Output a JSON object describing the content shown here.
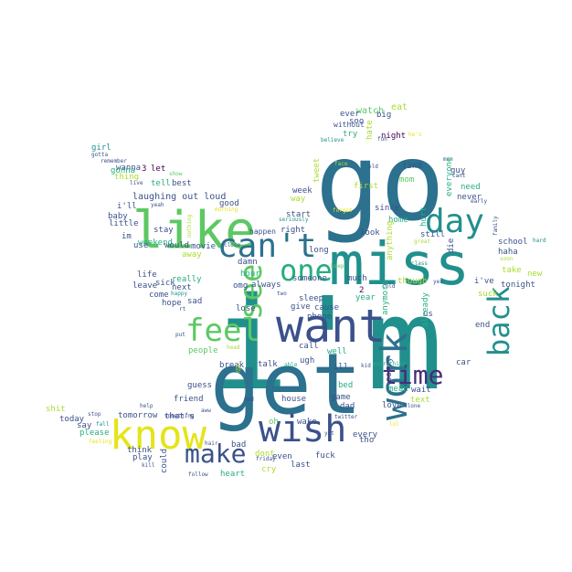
{
  "palette": {
    "background": "#ffffff",
    "colors": [
      "#440154",
      "#472c7a",
      "#3b518b",
      "#2c718e",
      "#21908d",
      "#27ad81",
      "#5cc863",
      "#aadc32",
      "#e5e419"
    ]
  },
  "words": [
    {
      "text": "i'm",
      "color": "#21908d"
    },
    {
      "text": "go",
      "color": "#2c718e"
    },
    {
      "text": "get",
      "color": "#2c718e"
    },
    {
      "text": "miss",
      "color": "#21908d"
    },
    {
      "text": "want",
      "color": "#3b518b"
    },
    {
      "text": "like",
      "color": "#5cc863"
    },
    {
      "text": "know",
      "color": "#e5e419"
    },
    {
      "text": "wish",
      "color": "#3b518b"
    },
    {
      "text": "work",
      "color": "#2c718e"
    },
    {
      "text": "can't",
      "color": "#2c718e"
    },
    {
      "text": "day",
      "color": "#21908d"
    },
    {
      "text": "see",
      "color": "#5cc863"
    },
    {
      "text": "feel",
      "color": "#5cc863"
    },
    {
      "text": "one",
      "color": "#27ad81"
    },
    {
      "text": "back",
      "color": "#21908d"
    },
    {
      "text": "time",
      "color": "#472c7a"
    },
    {
      "text": "make",
      "color": "#3b518b"
    },
    {
      "text": "laughing out loud",
      "color": "#3b518b"
    },
    {
      "text": "watch",
      "color": "#5cc863"
    },
    {
      "text": "eat",
      "color": "#aadc32"
    },
    {
      "text": "ever",
      "color": "#3b518b"
    },
    {
      "text": "big",
      "color": "#3b518b"
    },
    {
      "text": "soo",
      "color": "#3b518b"
    },
    {
      "text": "without",
      "color": "#3b518b"
    },
    {
      "text": "he's",
      "color": "#e5e419"
    },
    {
      "text": "try",
      "color": "#27ad81"
    },
    {
      "text": "hate",
      "color": "#aadc32"
    },
    {
      "text": "night",
      "color": "#440154"
    },
    {
      "text": "fun",
      "color": "#3b518b"
    },
    {
      "text": "believe",
      "color": "#21908d"
    },
    {
      "text": "girl",
      "color": "#21908d"
    },
    {
      "text": "gotta",
      "color": "#3b518b"
    },
    {
      "text": "remember",
      "color": "#3b518b"
    },
    {
      "text": "wanna",
      "color": "#3b518b"
    },
    {
      "text": "gonna",
      "color": "#27ad81"
    },
    {
      "text": "3",
      "color": "#440154"
    },
    {
      "text": "let",
      "color": "#440154"
    },
    {
      "text": "live",
      "color": "#3b518b"
    },
    {
      "text": "show",
      "color": "#5cc863"
    },
    {
      "text": "thing",
      "color": "#aadc32"
    },
    {
      "text": "tell",
      "color": "#27ad81"
    },
    {
      "text": "best",
      "color": "#3b518b"
    },
    {
      "text": "tweet",
      "color": "#aadc32"
    },
    {
      "text": "face",
      "color": "#aadc32"
    },
    {
      "text": "old",
      "color": "#3b518b"
    },
    {
      "text": "find",
      "color": "#3b518b"
    },
    {
      "text": "mom",
      "color": "#5cc863"
    },
    {
      "text": "guy",
      "color": "#3b518b"
    },
    {
      "text": "man",
      "color": "#3b518b"
    },
    {
      "text": "cant",
      "color": "#3b518b"
    },
    {
      "text": "i'll",
      "color": "#3b518b"
    },
    {
      "text": "yeah",
      "color": "#3b518b"
    },
    {
      "text": "nothing",
      "color": "#aadc32"
    },
    {
      "text": "morning",
      "color": "#e5e419"
    },
    {
      "text": "good",
      "color": "#3b518b"
    },
    {
      "text": "week",
      "color": "#3b518b"
    },
    {
      "text": "first",
      "color": "#aadc32"
    },
    {
      "text": "need",
      "color": "#27ad81"
    },
    {
      "text": "everyone",
      "color": "#27ad81"
    },
    {
      "text": "never",
      "color": "#3b518b"
    },
    {
      "text": "early",
      "color": "#3b518b"
    },
    {
      "text": "baby",
      "color": "#3b518b"
    },
    {
      "text": "little",
      "color": "#3b518b"
    },
    {
      "text": "stay",
      "color": "#3b518b"
    },
    {
      "text": "way",
      "color": "#aadc32"
    },
    {
      "text": "start",
      "color": "#3b518b"
    },
    {
      "text": "seriously",
      "color": "#21908d"
    },
    {
      "text": "forget",
      "color": "#e5e419"
    },
    {
      "text": "since",
      "color": "#3b518b"
    },
    {
      "text": "hurt",
      "color": "#27ad81"
    },
    {
      "text": "family",
      "color": "#3b518b"
    },
    {
      "text": "im",
      "color": "#3b518b"
    },
    {
      "text": "use",
      "color": "#3b518b"
    },
    {
      "text": "weekend",
      "color": "#27ad81"
    },
    {
      "text": "would",
      "color": "#3b518b"
    },
    {
      "text": "movie",
      "color": "#3b518b"
    },
    {
      "text": "away",
      "color": "#aadc32"
    },
    {
      "text": "close",
      "color": "#3b518b"
    },
    {
      "text": "happen",
      "color": "#3b518b"
    },
    {
      "text": "right",
      "color": "#3b518b"
    },
    {
      "text": "look",
      "color": "#3b518b"
    },
    {
      "text": "home",
      "color": "#27ad81"
    },
    {
      "text": "anything",
      "color": "#aadc32"
    },
    {
      "text": "great",
      "color": "#aadc32"
    },
    {
      "text": "die",
      "color": "#3b518b"
    },
    {
      "text": "school",
      "color": "#3b518b"
    },
    {
      "text": "hard",
      "color": "#21908d"
    },
    {
      "text": "haha",
      "color": "#3b518b"
    },
    {
      "text": "soon",
      "color": "#aadc32"
    },
    {
      "text": "long",
      "color": "#3b518b"
    },
    {
      "text": "still",
      "color": "#3b518b"
    },
    {
      "text": "damn",
      "color": "#3b518b"
    },
    {
      "text": "keep",
      "color": "#5cc863"
    },
    {
      "text": "life",
      "color": "#3b518b"
    },
    {
      "text": "sick",
      "color": "#3b518b"
    },
    {
      "text": "really",
      "color": "#27ad81"
    },
    {
      "text": "hour",
      "color": "#27ad81"
    },
    {
      "text": "always",
      "color": "#3b518b"
    },
    {
      "text": "two",
      "color": "#3b518b"
    },
    {
      "text": "someone",
      "color": "#3b518b"
    },
    {
      "text": "much",
      "color": "#3b518b"
    },
    {
      "text": "class",
      "color": "#21908d"
    },
    {
      "text": "take",
      "color": "#aadc32"
    },
    {
      "text": "new",
      "color": "#aadc32"
    },
    {
      "text": "leave",
      "color": "#3b518b"
    },
    {
      "text": "next",
      "color": "#3b518b"
    },
    {
      "text": "omg",
      "color": "#3b518b"
    },
    {
      "text": "2",
      "color": "#440154"
    },
    {
      "text": "cold",
      "color": "#3b518b"
    },
    {
      "text": "yes",
      "color": "#3b518b"
    },
    {
      "text": "tonight",
      "color": "#3b518b"
    },
    {
      "text": "i've",
      "color": "#3b518b"
    },
    {
      "text": "come",
      "color": "#3b518b"
    },
    {
      "text": "happy",
      "color": "#21908d"
    },
    {
      "text": "lose",
      "color": "#3b518b"
    },
    {
      "text": "sleep",
      "color": "#3b518b"
    },
    {
      "text": "year",
      "color": "#27ad81"
    },
    {
      "text": "though",
      "color": "#aadc32"
    },
    {
      "text": "suck",
      "color": "#aadc32"
    },
    {
      "text": "hope",
      "color": "#3b518b"
    },
    {
      "text": "sad",
      "color": "#3b518b"
    },
    {
      "text": "rt",
      "color": "#3b518b"
    },
    {
      "text": "give",
      "color": "#3b518b"
    },
    {
      "text": "cause",
      "color": "#3b518b"
    },
    {
      "text": "anymore",
      "color": "#27ad81"
    },
    {
      "text": "us",
      "color": "#3b518b"
    },
    {
      "text": "end",
      "color": "#3b518b"
    },
    {
      "text": "phone",
      "color": "#3b518b"
    },
    {
      "text": "already",
      "color": "#27ad81"
    },
    {
      "text": "put",
      "color": "#3b518b"
    },
    {
      "text": "people",
      "color": "#5cc863"
    },
    {
      "text": "call",
      "color": "#3b518b"
    },
    {
      "text": "head",
      "color": "#aadc32"
    },
    {
      "text": "well",
      "color": "#27ad81"
    },
    {
      "text": "ugh",
      "color": "#3b518b"
    },
    {
      "text": "car",
      "color": "#3b518b"
    },
    {
      "text": "guess",
      "color": "#3b518b"
    },
    {
      "text": "break",
      "color": "#3b518b"
    },
    {
      "text": "talk",
      "color": "#3b518b"
    },
    {
      "text": "able",
      "color": "#27ad81"
    },
    {
      "text": "ill",
      "color": "#3b518b"
    },
    {
      "text": "kid",
      "color": "#3b518b"
    },
    {
      "text": "everything",
      "color": "#27ad81"
    },
    {
      "text": "sorry",
      "color": "#3b518b"
    },
    {
      "text": "friend",
      "color": "#3b518b"
    },
    {
      "text": "bed",
      "color": "#27ad81"
    },
    {
      "text": "mean",
      "color": "#27ad81"
    },
    {
      "text": "wait",
      "color": "#3b518b"
    },
    {
      "text": "shit",
      "color": "#aadc32"
    },
    {
      "text": "help",
      "color": "#3b518b"
    },
    {
      "text": "stop",
      "color": "#3b518b"
    },
    {
      "text": "something",
      "color": "#3b518b"
    },
    {
      "text": "aww",
      "color": "#3b518b"
    },
    {
      "text": "mad",
      "color": "#3b518b"
    },
    {
      "text": "house",
      "color": "#3b518b"
    },
    {
      "text": "game",
      "color": "#3b518b"
    },
    {
      "text": "text",
      "color": "#aadc32"
    },
    {
      "text": "today",
      "color": "#3b518b"
    },
    {
      "text": "say",
      "color": "#3b518b"
    },
    {
      "text": "fall",
      "color": "#21908d"
    },
    {
      "text": "love",
      "color": "#3b518b"
    },
    {
      "text": "alone",
      "color": "#3b518b"
    },
    {
      "text": "dad",
      "color": "#3b518b"
    },
    {
      "text": "lol",
      "color": "#e5e419"
    },
    {
      "text": "tho",
      "color": "#3b518b"
    },
    {
      "text": "wake",
      "color": "#3b518b"
    },
    {
      "text": "every",
      "color": "#3b518b"
    },
    {
      "text": "oh",
      "color": "#5cc863"
    },
    {
      "text": "please",
      "color": "#27ad81"
    },
    {
      "text": "tomorrow",
      "color": "#3b518b"
    },
    {
      "text": "that's",
      "color": "#3b518b"
    },
    {
      "text": "feeling",
      "color": "#e5e419"
    },
    {
      "text": "think",
      "color": "#3b518b"
    },
    {
      "text": "play",
      "color": "#3b518b"
    },
    {
      "text": "could",
      "color": "#3b518b"
    },
    {
      "text": "bad",
      "color": "#3b518b"
    },
    {
      "text": "hair",
      "color": "#3b518b"
    },
    {
      "text": "dont",
      "color": "#aadc32"
    },
    {
      "text": "friday",
      "color": "#3b518b"
    },
    {
      "text": "cry",
      "color": "#aadc32"
    },
    {
      "text": "even",
      "color": "#3b518b"
    },
    {
      "text": "fuck",
      "color": "#3b518b"
    },
    {
      "text": "last",
      "color": "#3b518b"
    },
    {
      "text": "twitter",
      "color": "#3b518b"
    },
    {
      "text": "yet",
      "color": "#3b518b"
    },
    {
      "text": "kill",
      "color": "#3b518b"
    },
    {
      "text": "follow",
      "color": "#3b518b"
    },
    {
      "text": "heart",
      "color": "#27ad81"
    },
    {
      "text": "@",
      "color": "#aadc32"
    }
  ]
}
